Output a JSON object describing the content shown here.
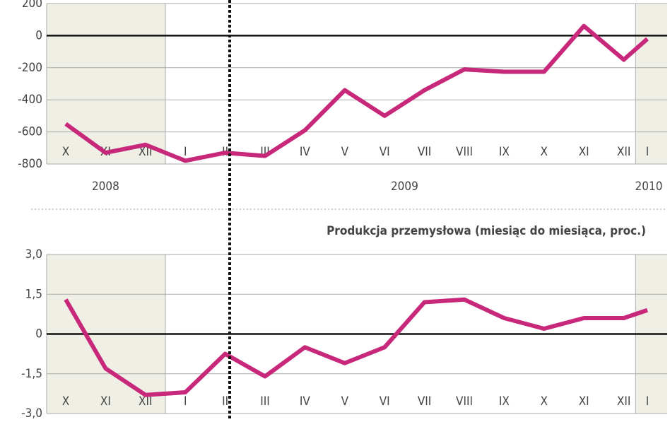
{
  "chart_data": [
    {
      "type": "line",
      "categories": [
        "X",
        "XI",
        "XII",
        "I",
        "II",
        "III",
        "IV",
        "V",
        "VI",
        "VII",
        "VIII",
        "IX",
        "X",
        "XI",
        "XII",
        "I"
      ],
      "years": [
        "2008",
        "2009",
        "2010"
      ],
      "series": [
        {
          "color": "#c8287a",
          "values": [
            -550,
            -730,
            -680,
            -780,
            -730,
            -750,
            -590,
            -340,
            -500,
            -340,
            -210,
            -225,
            -225,
            60,
            -150,
            -20
          ]
        }
      ],
      "ylim": [
        -800,
        200
      ],
      "yticks": [
        200,
        0,
        -200,
        -400,
        -600,
        -800
      ],
      "grid": true
    },
    {
      "type": "line",
      "title": "Produkcja przemysłowa (miesiąc do miesiąca, proc.)",
      "categories": [
        "X",
        "XI",
        "XII",
        "I",
        "II",
        "III",
        "IV",
        "V",
        "VI",
        "VII",
        "VIII",
        "IX",
        "X",
        "XI",
        "XII",
        "I"
      ],
      "series": [
        {
          "color": "#c8287a",
          "values": [
            1.3,
            -1.3,
            -2.3,
            -2.2,
            -0.75,
            -1.6,
            -0.5,
            -1.1,
            -0.5,
            1.2,
            1.3,
            0.6,
            0.2,
            0.6,
            0.6,
            0.9
          ]
        }
      ],
      "ylim": [
        -3,
        3
      ],
      "yticks": [
        {
          "value": 3,
          "label": "3,0"
        },
        {
          "value": 1.5,
          "label": "1,5"
        },
        0,
        {
          "value": -1.5,
          "label": "-1,5"
        },
        {
          "value": -3,
          "label": "-3,0"
        }
      ],
      "grid": true
    }
  ]
}
